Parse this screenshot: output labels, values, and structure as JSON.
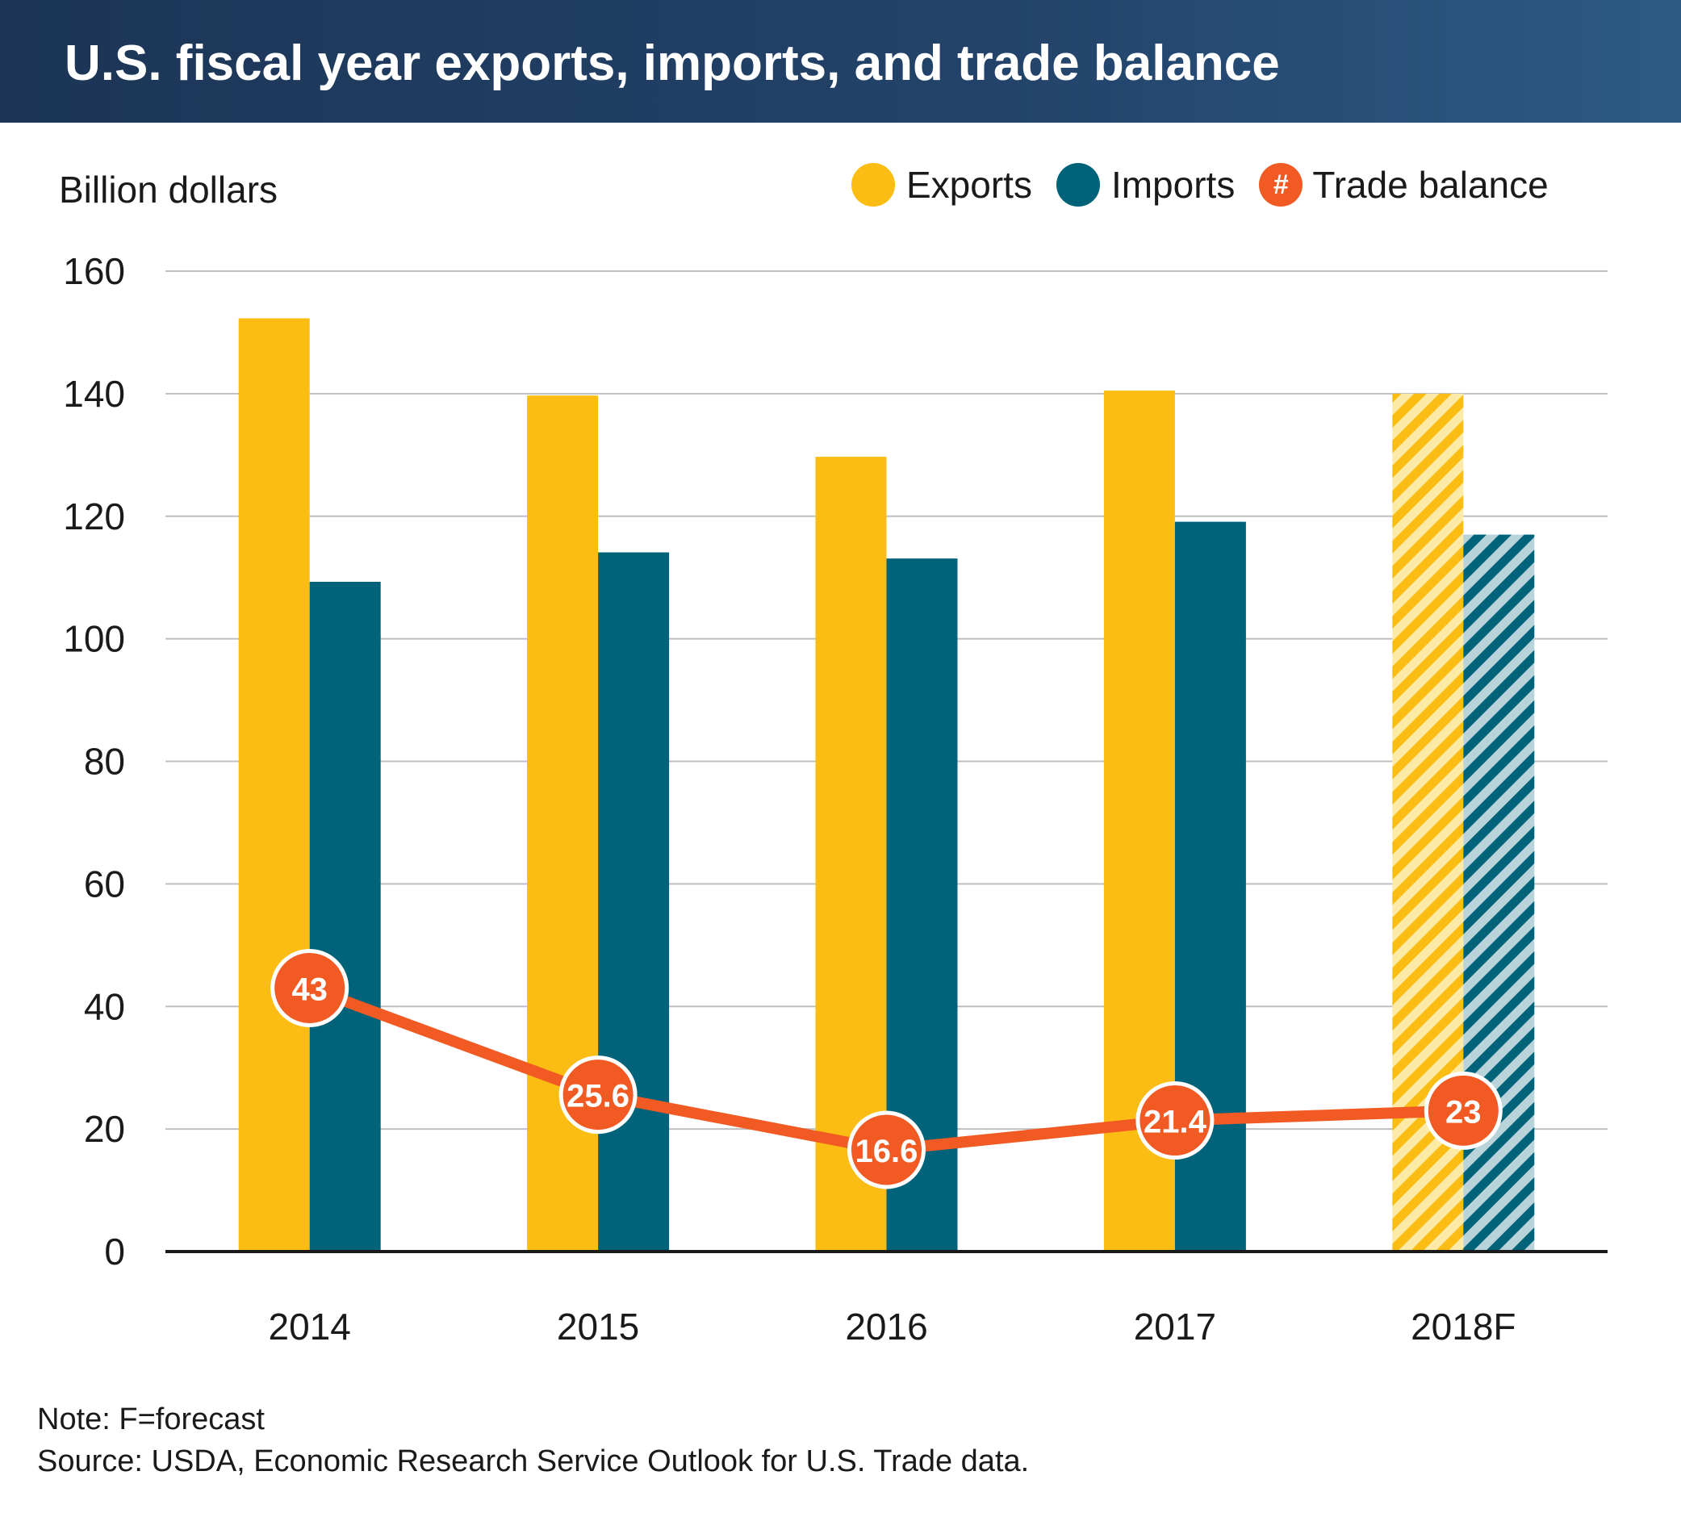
{
  "header": {
    "title": "U.S. fiscal year exports, imports, and trade balance"
  },
  "colors": {
    "header_bg": "#1e3a5f",
    "exports": "#fbbd13",
    "imports": "#00637a",
    "trade_balance": "#f15a22",
    "grid": "#bfbfbf",
    "text": "#1a1a1a"
  },
  "footer": {
    "note": "Note: F=forecast",
    "source": "Source: USDA, Economic Research Service Outlook for U.S. Trade data."
  },
  "chart_data": {
    "type": "bar",
    "title": "U.S. fiscal year exports, imports, and trade balance",
    "ylabel": "Billion dollars",
    "xlabel": "",
    "ylim": [
      0,
      160
    ],
    "yticks": [
      0,
      20,
      40,
      60,
      80,
      100,
      120,
      140,
      160
    ],
    "grid": true,
    "legend_position": "top-right",
    "legend_balance_symbol": "#",
    "categories": [
      "2014",
      "2015",
      "2016",
      "2017",
      "2018F"
    ],
    "forecast_categories": [
      "2018F"
    ],
    "series": [
      {
        "name": "Exports",
        "type": "bar",
        "color": "#fbbd13",
        "values": [
          152.3,
          139.7,
          129.7,
          140.5,
          140.0
        ]
      },
      {
        "name": "Imports",
        "type": "bar",
        "color": "#00637a",
        "values": [
          109.3,
          114.1,
          113.1,
          119.1,
          117.0
        ]
      },
      {
        "name": "Trade balance",
        "type": "line",
        "color": "#f15a22",
        "values": [
          43,
          25.6,
          16.6,
          21.4,
          23
        ],
        "labels": [
          "43",
          "25.6",
          "16.6",
          "21.4",
          "23"
        ]
      }
    ]
  }
}
